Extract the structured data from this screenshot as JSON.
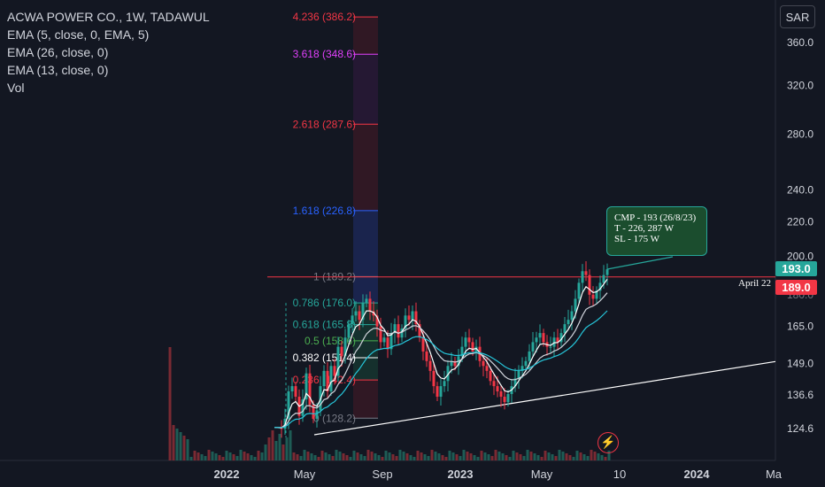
{
  "legend": {
    "title": "ACWA POWER CO., 1W, TADAWUL",
    "ema1": "EMA (5, close, 0, EMA, 5)",
    "ema2": "EMA (26, close, 0)",
    "ema3": "EMA (13, close, 0)",
    "vol": "Vol"
  },
  "currency_button": "SAR",
  "price_tags": {
    "current": {
      "label": "193.0",
      "color": "#26a69a"
    },
    "level": {
      "label": "189.0",
      "color": "#f23645"
    }
  },
  "callout": {
    "line1": "CMP - 193 (26/8/23)",
    "line2": "T - 226, 287 W",
    "line3": "SL - 175 W"
  },
  "horizontal_line_label": "April 22",
  "alert_icon": "lightning-bolt-icon",
  "colors": {
    "bull": "#26a69a",
    "bear": "#f23645",
    "background": "#131722",
    "text": "#d1d4dc"
  },
  "chart_data": {
    "type": "candlestick",
    "symbol": "ACWA POWER CO., 1W, TADAWUL",
    "y_axis_ticks": [
      360.0,
      320.0,
      280.0,
      240.0,
      220.0,
      200.0,
      165.0,
      149.0,
      136.6,
      124.6
    ],
    "y_axis_partial": [
      "180.0"
    ],
    "x_axis_ticks": [
      "2022",
      "May",
      "Sep",
      "2023",
      "May",
      "10",
      "2024",
      "Ma"
    ],
    "fibonacci_levels": [
      {
        "ratio": "4.236",
        "price": "386.2"
      },
      {
        "ratio": "3.618",
        "price": "348.6"
      },
      {
        "ratio": "2.618",
        "price": "287.6"
      },
      {
        "ratio": "1.618",
        "price": "226.8"
      },
      {
        "ratio": "1",
        "price": "189.2"
      },
      {
        "ratio": "0.786",
        "price": "176.0"
      },
      {
        "ratio": "0.618",
        "price": "165.8"
      },
      {
        "ratio": "0.5",
        "price": "158.6"
      },
      {
        "ratio": "0.382",
        "price": "151.4"
      },
      {
        "ratio": "0.236",
        "price": "142.4"
      },
      {
        "ratio": "0",
        "price": "128.2"
      }
    ],
    "horizontal_line": {
      "price": 189.0,
      "label": "April 22"
    },
    "current_price": 193.0,
    "trendline": {
      "from": 122.5,
      "to": 149.8
    }
  }
}
